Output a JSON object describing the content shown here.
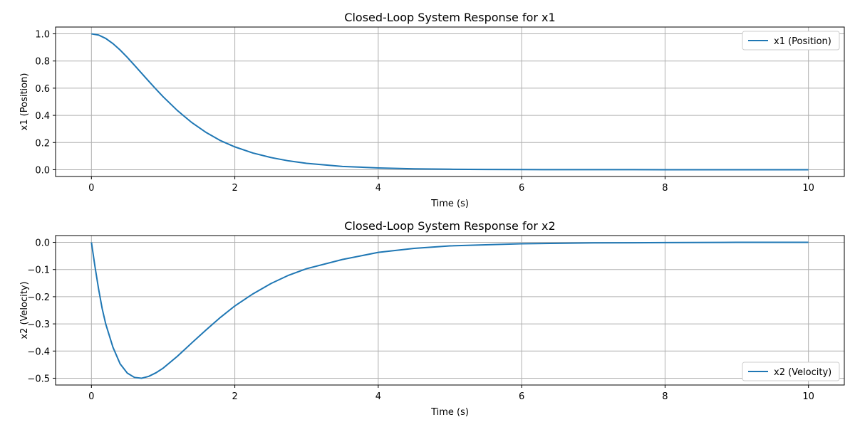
{
  "chart_data": [
    {
      "type": "line",
      "title": "Closed-Loop System Response for x1",
      "xlabel": "Time (s)",
      "ylabel": "x1 (Position)",
      "xlim": [
        -0.5,
        10.5
      ],
      "ylim": [
        -0.05,
        1.05
      ],
      "xticks": [
        0,
        2,
        4,
        6,
        8,
        10
      ],
      "xtick_labels": [
        "0",
        "2",
        "4",
        "6",
        "8",
        "10"
      ],
      "yticks": [
        0.0,
        0.2,
        0.4,
        0.6,
        0.8,
        1.0
      ],
      "ytick_labels": [
        "0.0",
        "0.2",
        "0.4",
        "0.6",
        "0.8",
        "1.0"
      ],
      "grid": true,
      "legend_position": "top-right",
      "series": [
        {
          "name": "x1 (Position)",
          "color": "#1f77b4",
          "x": [
            0,
            0.1,
            0.2,
            0.3,
            0.4,
            0.5,
            0.6,
            0.7,
            0.8,
            0.9,
            1.0,
            1.2,
            1.4,
            1.6,
            1.8,
            2.0,
            2.25,
            2.5,
            2.75,
            3.0,
            3.5,
            4.0,
            4.5,
            5.0,
            5.5,
            6.0,
            7.0,
            8.0,
            9.0,
            10.0
          ],
          "y": [
            1.0,
            0.991,
            0.966,
            0.928,
            0.881,
            0.827,
            0.769,
            0.71,
            0.651,
            0.593,
            0.537,
            0.435,
            0.347,
            0.274,
            0.214,
            0.168,
            0.123,
            0.09,
            0.065,
            0.047,
            0.024,
            0.013,
            0.0065,
            0.0035,
            0.0017,
            0.0009,
            0.0002,
            0.0001,
            0.0,
            0.0
          ]
        }
      ]
    },
    {
      "type": "line",
      "title": "Closed-Loop System Response for x2",
      "xlabel": "Time (s)",
      "ylabel": "x2 (Velocity)",
      "xlim": [
        -0.5,
        10.5
      ],
      "ylim": [
        -0.525,
        0.025
      ],
      "xticks": [
        0,
        2,
        4,
        6,
        8,
        10
      ],
      "xtick_labels": [
        "0",
        "2",
        "4",
        "6",
        "8",
        "10"
      ],
      "yticks": [
        0.0,
        -0.1,
        -0.2,
        -0.3,
        -0.4,
        -0.5
      ],
      "ytick_labels": [
        "0.0",
        "−0.1",
        "−0.2",
        "−0.3",
        "−0.4",
        "−0.5"
      ],
      "grid": true,
      "legend_position": "bottom-right",
      "series": [
        {
          "name": "x2 (Velocity)",
          "color": "#1f77b4",
          "x": [
            0,
            0.05,
            0.1,
            0.15,
            0.2,
            0.3,
            0.4,
            0.5,
            0.6,
            0.7,
            0.8,
            0.9,
            1.0,
            1.2,
            1.4,
            1.6,
            1.8,
            2.0,
            2.25,
            2.5,
            2.75,
            3.0,
            3.5,
            4.0,
            4.5,
            5.0,
            6.0,
            7.0,
            8.0,
            9.0,
            10.0
          ],
          "y": [
            0.0,
            -0.09,
            -0.172,
            -0.244,
            -0.301,
            -0.386,
            -0.447,
            -0.481,
            -0.497,
            -0.5,
            -0.493,
            -0.48,
            -0.463,
            -0.419,
            -0.37,
            -0.322,
            -0.276,
            -0.234,
            -0.19,
            -0.152,
            -0.121,
            -0.097,
            -0.063,
            -0.037,
            -0.022,
            -0.013,
            -0.005,
            -0.002,
            -0.001,
            0.0,
            0.0
          ]
        }
      ]
    }
  ]
}
